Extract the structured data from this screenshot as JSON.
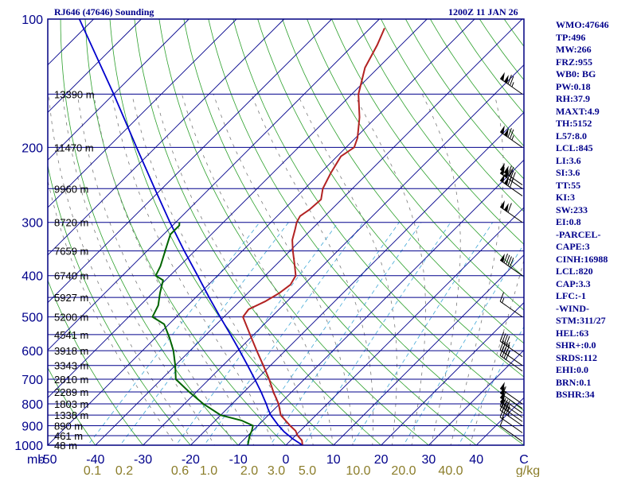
{
  "header": {
    "station": "RJ646 (47646) Sounding",
    "time": "1200Z 11 JAN 26"
  },
  "indices": [
    "WMO:47646",
    "TP:496",
    "MW:266",
    "FRZ:955",
    "WB0: BG",
    "PW:0.18",
    "RH:37.9",
    "MAXT:4.9",
    "TH:5152",
    "L57:8.0",
    "LCL:845",
    "LI:3.6",
    "SI:3.6",
    "TT:55",
    "KI:3",
    "SW:233",
    "EI:0.8",
    "-PARCEL-",
    "CAPE:3",
    "CINH:16988",
    "LCL:820",
    "CAP:3.3",
    "LFC:-1",
    "-WIND-",
    "STM:311/27",
    "HEL:63",
    "SHR+:0.0",
    "SRDS:112",
    "EHI:0.0",
    "BRN:0.1",
    "BSHR:34"
  ],
  "colors": {
    "background": "#ffffff",
    "frame": "#000080",
    "isobar": "#00008b",
    "isotherm": "#00008b",
    "dry_adiabat": "#2ca02c",
    "moist_adiabat": "#7a7a7a",
    "mixing_ratio": "#3fa7d6",
    "temperature": "#b22222",
    "dewpoint": "#006400",
    "parcel": "#0000cd",
    "wind_barb": "#000000",
    "mixing_label": "#8b7d2a",
    "text": "#00008b"
  },
  "chart_data": {
    "type": "skew-t",
    "title": "RJ646 (47646) Sounding",
    "xlabel": "",
    "ylabel": "mb",
    "pressure_ticks": [
      "100",
      "200",
      "300",
      "400",
      "500",
      "600",
      "700",
      "800",
      "900",
      "1000"
    ],
    "temperature_ticks": [
      "-50",
      "-40",
      "-30",
      "-20",
      "-10",
      "0",
      "10",
      "20",
      "30",
      "40",
      "C"
    ],
    "mixing_ratio_labels": [
      "0.1",
      "0.2",
      "0.6",
      "1.0",
      "2.0",
      "3.0",
      "5.0",
      "10.0",
      "20.0",
      "40.0",
      "g/kg"
    ],
    "height_labels": [
      "13390 m",
      "11470 m",
      "9960 m",
      "8720 m",
      "7659 m",
      "6740 m",
      "5927 m",
      "5200 m",
      "4541 m",
      "3918 m",
      "3343 m",
      "2810 m",
      "2289 m",
      "1803 m",
      "1338 m",
      "890 m",
      "461 m",
      "48 m"
    ],
    "xlim": [
      -50,
      50
    ],
    "ylim": [
      1000,
      100
    ],
    "log_pressure": true,
    "temperature_profile": [
      {
        "p": 1000,
        "t": 3.5
      },
      {
        "p": 975,
        "t": 2.4
      },
      {
        "p": 950,
        "t": 0.5
      },
      {
        "p": 925,
        "t": -1.0
      },
      {
        "p": 900,
        "t": -3.2
      },
      {
        "p": 850,
        "t": -7.4
      },
      {
        "p": 800,
        "t": -10.2
      },
      {
        "p": 750,
        "t": -13.8
      },
      {
        "p": 700,
        "t": -17.4
      },
      {
        "p": 650,
        "t": -21.5
      },
      {
        "p": 600,
        "t": -26.0
      },
      {
        "p": 550,
        "t": -30.8
      },
      {
        "p": 500,
        "t": -36.0
      },
      {
        "p": 480,
        "t": -36.4
      },
      {
        "p": 460,
        "t": -34.6
      },
      {
        "p": 440,
        "t": -33.4
      },
      {
        "p": 420,
        "t": -32.8
      },
      {
        "p": 400,
        "t": -33.6
      },
      {
        "p": 380,
        "t": -35.8
      },
      {
        "p": 350,
        "t": -39.4
      },
      {
        "p": 330,
        "t": -41.8
      },
      {
        "p": 310,
        "t": -43.6
      },
      {
        "p": 300,
        "t": -44.6
      },
      {
        "p": 290,
        "t": -45.2
      },
      {
        "p": 280,
        "t": -44.6
      },
      {
        "p": 265,
        "t": -44.3
      },
      {
        "p": 250,
        "t": -46.2
      },
      {
        "p": 230,
        "t": -47.8
      },
      {
        "p": 210,
        "t": -49.2
      },
      {
        "p": 200,
        "t": -48.3
      },
      {
        "p": 190,
        "t": -49.6
      },
      {
        "p": 170,
        "t": -53.5
      },
      {
        "p": 150,
        "t": -58.6
      },
      {
        "p": 130,
        "t": -62.8
      },
      {
        "p": 115,
        "t": -65.0
      },
      {
        "p": 105,
        "t": -67.0
      }
    ],
    "dewpoint_profile": [
      {
        "p": 1000,
        "t": -8.0
      },
      {
        "p": 975,
        "t": -8.8
      },
      {
        "p": 950,
        "t": -9.6
      },
      {
        "p": 925,
        "t": -10.2
      },
      {
        "p": 900,
        "t": -11.0
      },
      {
        "p": 875,
        "t": -14.5
      },
      {
        "p": 850,
        "t": -20.0
      },
      {
        "p": 800,
        "t": -26.0
      },
      {
        "p": 750,
        "t": -31.5
      },
      {
        "p": 700,
        "t": -37.0
      },
      {
        "p": 650,
        "t": -40.0
      },
      {
        "p": 600,
        "t": -43.5
      },
      {
        "p": 560,
        "t": -47.0
      },
      {
        "p": 520,
        "t": -51.0
      },
      {
        "p": 500,
        "t": -55.0
      },
      {
        "p": 470,
        "t": -56.2
      },
      {
        "p": 440,
        "t": -58.4
      },
      {
        "p": 410,
        "t": -60.5
      },
      {
        "p": 400,
        "t": -63.0
      },
      {
        "p": 380,
        "t": -64.0
      },
      {
        "p": 340,
        "t": -67.0
      },
      {
        "p": 320,
        "t": -68.6
      },
      {
        "p": 305,
        "t": -68.6
      },
      {
        "p": 300,
        "t": -69.2
      }
    ],
    "parcel_path": [
      {
        "p": 1000,
        "t": 3.5
      },
      {
        "p": 965,
        "t": 0.0
      },
      {
        "p": 930,
        "t": -3.2
      },
      {
        "p": 895,
        "t": -6.0
      },
      {
        "p": 850,
        "t": -9.5
      },
      {
        "p": 820,
        "t": -11.5
      },
      {
        "p": 800,
        "t": -12.8
      },
      {
        "p": 750,
        "t": -16.4
      },
      {
        "p": 700,
        "t": -20.4
      },
      {
        "p": 650,
        "t": -24.8
      },
      {
        "p": 600,
        "t": -29.6
      },
      {
        "p": 550,
        "t": -34.9
      },
      {
        "p": 500,
        "t": -40.8
      },
      {
        "p": 450,
        "t": -47.2
      },
      {
        "p": 400,
        "t": -54.2
      },
      {
        "p": 350,
        "t": -62.2
      },
      {
        "p": 300,
        "t": -71.2
      },
      {
        "p": 250,
        "t": -81.5
      },
      {
        "p": 200,
        "t": -94.0
      },
      {
        "p": 150,
        "t": -110.0
      },
      {
        "p": 100,
        "t": -133.0
      }
    ],
    "wind_barbs": [
      {
        "p": 980,
        "kt": 10
      },
      {
        "p": 935,
        "kt": 20
      },
      {
        "p": 900,
        "kt": 45
      },
      {
        "p": 880,
        "kt": 45
      },
      {
        "p": 860,
        "kt": 50
      },
      {
        "p": 840,
        "kt": 50
      },
      {
        "p": 820,
        "kt": 55
      },
      {
        "p": 800,
        "kt": 55
      },
      {
        "p": 670,
        "kt": 40
      },
      {
        "p": 650,
        "kt": 45
      },
      {
        "p": 620,
        "kt": 45
      },
      {
        "p": 500,
        "kt": 15
      },
      {
        "p": 400,
        "kt": 90
      },
      {
        "p": 300,
        "kt": 110
      },
      {
        "p": 260,
        "kt": 120
      },
      {
        "p": 250,
        "kt": 130
      },
      {
        "p": 245,
        "kt": 120
      },
      {
        "p": 200,
        "kt": 125
      },
      {
        "p": 150,
        "kt": 125
      }
    ]
  }
}
